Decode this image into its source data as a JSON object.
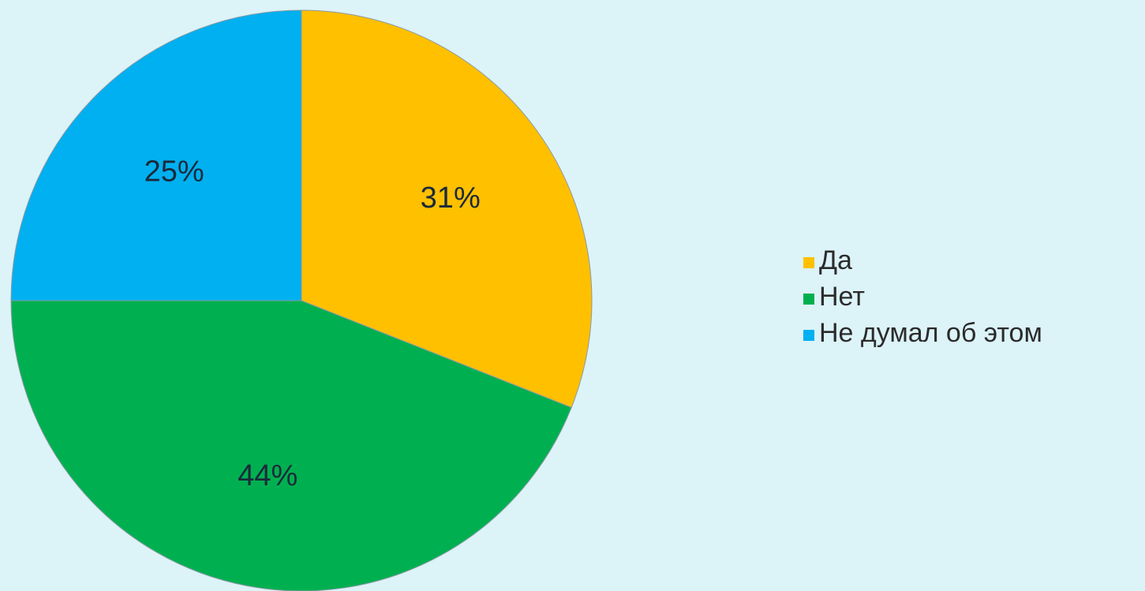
{
  "chart_data": {
    "type": "pie",
    "slices": [
      {
        "label": "Да",
        "value": 31,
        "display": "31%",
        "color": "#ffc000"
      },
      {
        "label": "Нет",
        "value": 44,
        "display": "44%",
        "color": "#00b050"
      },
      {
        "label": "Не думал об этом",
        "value": 25,
        "display": "25%",
        "color": "#00b0f0"
      }
    ],
    "title": "",
    "legend_position": "right",
    "start_angle": "12 o'clock",
    "direction": "clockwise"
  }
}
